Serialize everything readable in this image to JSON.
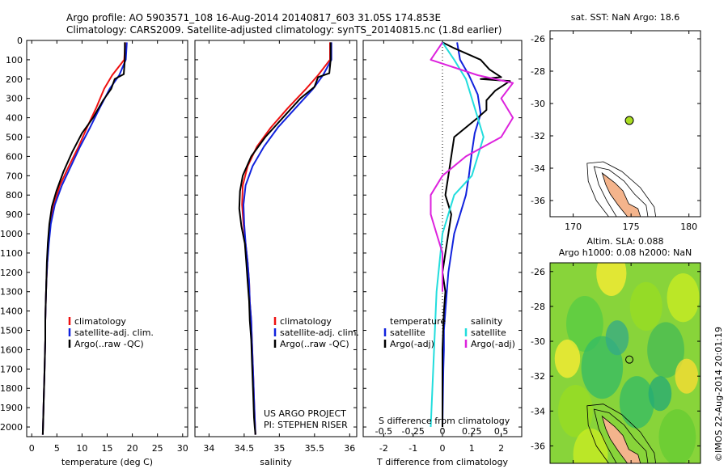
{
  "header": {
    "line1": "Argo profile: AO 5903571_108 16-Aug-2014 20140817_603 31.05S 174.853E",
    "line2": "Climatology: CARS2009. Satellite-adjusted climatology: synTS_20140815.nc (1.8d earlier)"
  },
  "colors": {
    "climatology": "#ee1111",
    "satellite": "#1122dd",
    "argo": "#000000",
    "sat_salinity": "#22dddd",
    "argo_salinity": "#dd22dd",
    "land": "#f4b48c",
    "float_marker": "#aadd22"
  },
  "depth_axis": {
    "ylim": [
      0,
      2050
    ],
    "ticks": [
      0,
      100,
      200,
      300,
      400,
      500,
      600,
      700,
      800,
      900,
      1000,
      1100,
      1200,
      1300,
      1400,
      1500,
      1600,
      1700,
      1800,
      1900,
      2000
    ]
  },
  "chart_data": [
    {
      "id": "temperature",
      "type": "line",
      "xlabel": "temperature (deg C)",
      "xlim": [
        -1,
        31
      ],
      "xticks": [
        0,
        5,
        10,
        15,
        20,
        25,
        30
      ],
      "legend": [
        "climatology",
        "satellite-adj. clim.",
        "Argo(..raw -QC)"
      ],
      "series": [
        {
          "name": "climatology",
          "color": "climatology",
          "x": [
            18.6,
            18.4,
            16,
            14.4,
            12.8,
            11,
            9.3,
            7.4,
            5.6,
            4.4,
            3.7,
            3.3,
            3.1,
            2.9,
            2.8,
            2.7,
            2.7,
            2.6,
            2.5,
            2.4,
            2.3,
            2.2
          ],
          "y": [
            10,
            100,
            180,
            250,
            350,
            450,
            550,
            650,
            750,
            850,
            950,
            1050,
            1150,
            1250,
            1350,
            1450,
            1550,
            1650,
            1750,
            1850,
            1950,
            2040
          ]
        },
        {
          "name": "satellite-adj. clim.",
          "color": "satellite",
          "x": [
            18.9,
            18.7,
            17.4,
            15.5,
            13.5,
            11.6,
            9.6,
            7.8,
            6,
            4.6,
            3.8,
            3.4,
            3.1,
            2.9,
            2.8,
            2.7,
            2.7,
            2.6,
            2.5,
            2.4,
            2.3,
            2.2
          ],
          "y": [
            10,
            100,
            180,
            250,
            350,
            450,
            550,
            650,
            750,
            850,
            950,
            1050,
            1150,
            1250,
            1350,
            1450,
            1550,
            1650,
            1750,
            1850,
            1950,
            2040
          ]
        },
        {
          "name": "Argo(..raw -QC)",
          "color": "argo",
          "x": [
            18.5,
            18.5,
            18.3,
            16.5,
            15.8,
            14.2,
            12.2,
            10,
            8,
            6.3,
            4.9,
            4,
            3.5,
            3.2,
            3,
            2.9,
            2.8,
            2.7,
            2.7,
            2.6,
            2.5,
            2.4,
            2.3,
            2.2
          ],
          "y": [
            10,
            100,
            175,
            200,
            250,
            310,
            400,
            480,
            580,
            680,
            780,
            860,
            950,
            1050,
            1150,
            1250,
            1350,
            1450,
            1550,
            1650,
            1750,
            1850,
            1950,
            2040
          ]
        }
      ]
    },
    {
      "id": "salinity",
      "type": "line",
      "xlabel": "salinity",
      "xlim": [
        33.8,
        36.1
      ],
      "xticks": [
        34,
        34.5,
        35,
        35.5,
        36
      ],
      "legend": [
        "climatology",
        "satellite-adj. clim.",
        "Argo(..raw -QC)"
      ],
      "notes": [
        "US ARGO PROJECT",
        "PI: STEPHEN RISER"
      ],
      "series": [
        {
          "name": "climatology",
          "color": "climatology",
          "x": [
            35.72,
            35.72,
            35.55,
            35.38,
            35.12,
            34.88,
            34.68,
            34.55,
            34.48,
            34.47,
            34.49,
            34.52,
            34.55,
            34.57,
            34.58,
            34.6,
            34.61,
            34.62,
            34.63,
            34.64,
            34.65,
            34.66
          ],
          "y": [
            10,
            100,
            180,
            250,
            350,
            450,
            550,
            650,
            750,
            850,
            950,
            1050,
            1150,
            1250,
            1350,
            1450,
            1550,
            1650,
            1750,
            1850,
            1950,
            2040
          ]
        },
        {
          "name": "satellite-adj. clim.",
          "color": "satellite",
          "x": [
            35.74,
            35.74,
            35.62,
            35.48,
            35.23,
            34.98,
            34.78,
            34.62,
            34.52,
            34.49,
            34.5,
            34.52,
            34.55,
            34.57,
            34.58,
            34.6,
            34.61,
            34.62,
            34.63,
            34.64,
            34.65,
            34.66
          ],
          "y": [
            10,
            100,
            180,
            250,
            350,
            450,
            550,
            650,
            750,
            850,
            950,
            1050,
            1150,
            1250,
            1350,
            1450,
            1550,
            1650,
            1750,
            1850,
            1950,
            2040
          ]
        },
        {
          "name": "Argo(..raw -QC)",
          "color": "argo",
          "x": [
            35.73,
            35.73,
            35.71,
            35.55,
            35.5,
            35.3,
            35.05,
            34.8,
            34.6,
            34.48,
            34.44,
            34.43,
            34.46,
            34.51,
            34.53,
            34.55,
            34.57,
            34.58,
            34.6,
            34.61,
            34.62,
            34.63,
            34.64,
            34.65,
            34.66
          ],
          "y": [
            10,
            100,
            170,
            190,
            240,
            300,
            400,
            500,
            600,
            700,
            780,
            870,
            960,
            1050,
            1150,
            1250,
            1350,
            1450,
            1550,
            1650,
            1750,
            1850,
            1950,
            2000,
            2040
          ]
        }
      ]
    },
    {
      "id": "difference",
      "type": "line",
      "xlabel": "T difference from climatology",
      "xlabel_top": "S difference from climatology",
      "xlim": [
        -2.7,
        2.7
      ],
      "xticks": [
        -2,
        -1,
        0,
        1,
        2
      ],
      "sticks_labels": [
        "-0.5",
        "-0.25",
        "0",
        "0.25",
        "0.5"
      ],
      "legend_headers": [
        "temperature",
        "salinity"
      ],
      "legend_left": [
        "satellite",
        "Argo(-adj)"
      ],
      "legend_right": [
        "satellite",
        "Argo(-adj)"
      ],
      "series": [
        {
          "name": "temperature satellite",
          "color": "satellite",
          "x": [
            0.5,
            0.6,
            0.9,
            1.2,
            1.3,
            1.1,
            1.0,
            0.9,
            0.8,
            0.6,
            0.4,
            0.3,
            0.2,
            0.15,
            0.1,
            0.05,
            0.05,
            0.03,
            0.02,
            0.0
          ],
          "y": [
            10,
            100,
            180,
            280,
            380,
            480,
            580,
            700,
            800,
            900,
            1000,
            1100,
            1200,
            1300,
            1400,
            1500,
            1600,
            1700,
            1800,
            2000
          ]
        },
        {
          "name": "temperature Argo(-adj)",
          "color": "argo",
          "x": [
            0.0,
            0.4,
            1.3,
            1.6,
            2.0,
            1.3,
            2.3,
            1.8,
            1.5,
            1.5,
            1.2,
            0.4,
            0.3,
            0.2,
            0.1,
            0.3,
            0.2,
            0.1,
            0.0,
            0.1,
            0.05,
            0.0,
            0.0
          ],
          "y": [
            10,
            40,
            100,
            150,
            190,
            200,
            210,
            260,
            310,
            360,
            400,
            500,
            600,
            700,
            800,
            900,
            1000,
            1100,
            1200,
            1300,
            1400,
            1600,
            2000
          ]
        },
        {
          "name": "salinity satellite",
          "color": "sat_salinity",
          "x": [
            0.0,
            0.1,
            0.2,
            0.25,
            0.3,
            0.35,
            0.3,
            0.25,
            0.1,
            0.0,
            -0.05,
            -0.1
          ],
          "y": [
            10,
            100,
            200,
            300,
            400,
            500,
            600,
            700,
            800,
            1000,
            1300,
            2000
          ]
        },
        {
          "name": "salinity Argo(-adj)",
          "color": "argo_salinity",
          "x": [
            0.0,
            -0.1,
            0.3,
            0.6,
            0.5,
            0.6,
            0.5,
            0.2,
            0.0,
            -0.1,
            -0.1,
            -0.05,
            0.0,
            0.0
          ],
          "y": [
            10,
            100,
            180,
            220,
            300,
            400,
            500,
            600,
            700,
            800,
            900,
            1000,
            1100,
            1300
          ]
        }
      ]
    }
  ],
  "maps": [
    {
      "id": "sst-map",
      "title": "sat. SST: NaN Argo: 18.6",
      "xlim": [
        168,
        181
      ],
      "ylim": [
        -37,
        -25.5
      ],
      "xticks": [
        170,
        175,
        180
      ],
      "yticks": [
        -26,
        -28,
        -30,
        -32,
        -34,
        -36
      ],
      "float": {
        "lon": 174.853,
        "lat": -31.05
      }
    },
    {
      "id": "sla-map",
      "title1": "Altim. SLA: 0.088",
      "title2": "Argo h1000: 0.08 h2000: NaN",
      "xlim": [
        168,
        181
      ],
      "ylim": [
        -37,
        -25.5
      ],
      "xticks": [
        170,
        175,
        180
      ],
      "yticks": [
        -26,
        -28,
        -30,
        -32,
        -34,
        -36
      ],
      "float": {
        "lon": 174.853,
        "lat": -31.05
      }
    }
  ],
  "side_stamp": "©IMOS 22-Aug-2014 20:01:19"
}
